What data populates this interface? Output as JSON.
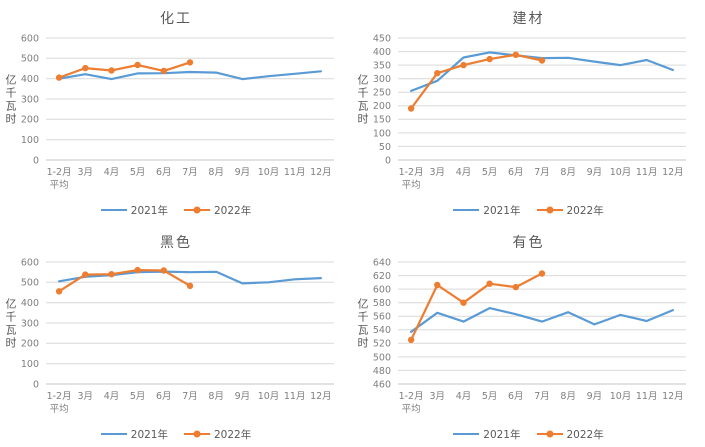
{
  "page": {
    "background": "#ffffff"
  },
  "colors": {
    "series_2021": "#5B9BD5",
    "series_2022": "#ED7D31",
    "gridline": "#D9D9D9",
    "axis_line": "#C6C6C6",
    "tick_text": "#7F7F7F",
    "title_text": "#595959",
    "legend_text": "#595959"
  },
  "chart_data": [
    {
      "type": "line",
      "title": "化工",
      "ylabel": "亿千瓦时",
      "ylim": [
        0,
        600
      ],
      "ytick_step": 100,
      "grid": true,
      "legend_position": "bottom",
      "categories": [
        "1-2月",
        "3月",
        "4月",
        "5月",
        "6月",
        "7月",
        "8月",
        "9月",
        "10月",
        "11月",
        "12月"
      ],
      "first_sublabel": "平均",
      "series": [
        {
          "name": "2021年",
          "color": "#5B9BD5",
          "marker": false,
          "values": [
            400,
            422,
            398,
            426,
            427,
            433,
            430,
            398,
            412,
            424,
            436
          ]
        },
        {
          "name": "2022年",
          "color": "#ED7D31",
          "marker": true,
          "values": [
            405,
            452,
            440,
            467,
            438,
            480
          ]
        }
      ]
    },
    {
      "type": "line",
      "title": "建材",
      "ylabel": "亿千瓦时",
      "ylim": [
        0,
        450
      ],
      "ytick_step": 50,
      "grid": true,
      "legend_position": "bottom",
      "categories": [
        "1-2月",
        "3月",
        "4月",
        "5月",
        "6月",
        "7月",
        "8月",
        "9月",
        "10月",
        "11月",
        "12月"
      ],
      "first_sublabel": "平均",
      "series": [
        {
          "name": "2021年",
          "color": "#5B9BD5",
          "marker": false,
          "values": [
            255,
            292,
            378,
            397,
            386,
            376,
            377,
            363,
            350,
            369,
            332
          ]
        },
        {
          "name": "2022年",
          "color": "#ED7D31",
          "marker": true,
          "values": [
            190,
            320,
            350,
            372,
            388,
            367
          ]
        }
      ]
    },
    {
      "type": "line",
      "title": "黑色",
      "ylabel": "亿千瓦时",
      "ylim": [
        0,
        600
      ],
      "ytick_step": 100,
      "grid": true,
      "legend_position": "bottom",
      "categories": [
        "1-2月",
        "3月",
        "4月",
        "5月",
        "6月",
        "7月",
        "8月",
        "9月",
        "10月",
        "11月",
        "12月"
      ],
      "first_sublabel": "平均",
      "series": [
        {
          "name": "2021年",
          "color": "#5B9BD5",
          "marker": false,
          "values": [
            505,
            527,
            535,
            550,
            553,
            550,
            552,
            495,
            500,
            515,
            521
          ]
        },
        {
          "name": "2022年",
          "color": "#ED7D31",
          "marker": true,
          "values": [
            456,
            538,
            540,
            560,
            558,
            483
          ]
        }
      ]
    },
    {
      "type": "line",
      "title": "有色",
      "ylabel": "亿千瓦时",
      "ylim": [
        460,
        640
      ],
      "ytick_step": 20,
      "grid": true,
      "legend_position": "bottom",
      "categories": [
        "1-2月",
        "3月",
        "4月",
        "5月",
        "6月",
        "7月",
        "8月",
        "9月",
        "10月",
        "11月",
        "12月"
      ],
      "first_sublabel": "平均",
      "series": [
        {
          "name": "2021年",
          "color": "#5B9BD5",
          "marker": false,
          "values": [
            537,
            565,
            552,
            572,
            563,
            552,
            566,
            548,
            562,
            553,
            569
          ]
        },
        {
          "name": "2022年",
          "color": "#ED7D31",
          "marker": true,
          "values": [
            525,
            606,
            580,
            608,
            603,
            623
          ]
        }
      ]
    }
  ]
}
